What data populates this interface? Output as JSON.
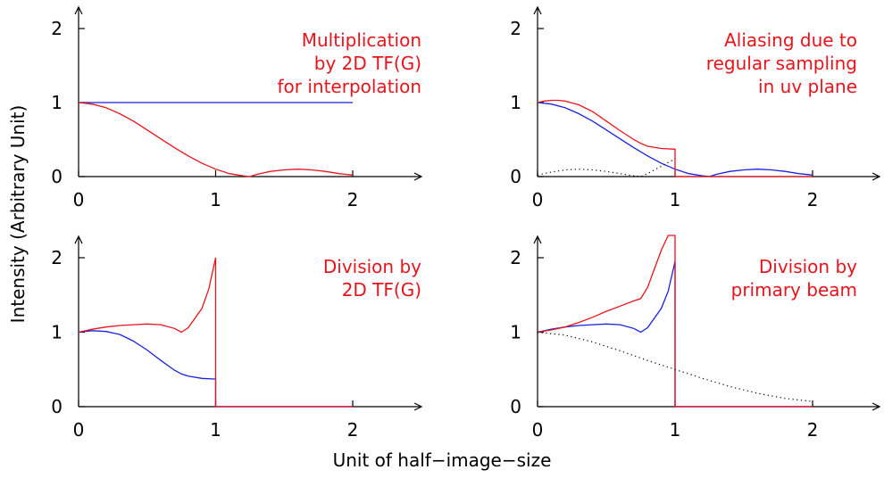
{
  "figure": {
    "ylabel": "Intensity (Arbitrary Unit)",
    "xlabel": "Unit of half−image−size"
  },
  "colors": {
    "red": "#e8141c",
    "blue": "#1a22e0",
    "black": "#000000"
  },
  "chart_data": [
    {
      "type": "line",
      "title": "",
      "annotation": [
        "Multiplication",
        "by 2D TF(G)",
        "for interpolation"
      ],
      "xlim": [
        0,
        2.5
      ],
      "ylim": [
        0,
        2.3
      ],
      "xticks": [
        0,
        1,
        2
      ],
      "yticks": [
        0,
        1,
        2
      ],
      "series": [
        {
          "color": "blue",
          "style": "solid",
          "x": [
            0,
            2
          ],
          "y": [
            1,
            1
          ]
        },
        {
          "color": "red",
          "style": "solid",
          "x": [
            0,
            0.1,
            0.2,
            0.3,
            0.4,
            0.5,
            0.6,
            0.7,
            0.8,
            0.9,
            1.0,
            1.1,
            1.2,
            1.25,
            1.3,
            1.4,
            1.5,
            1.6,
            1.7,
            1.8,
            1.9,
            2.0
          ],
          "y": [
            1.0,
            0.98,
            0.93,
            0.85,
            0.75,
            0.63,
            0.51,
            0.39,
            0.28,
            0.18,
            0.1,
            0.04,
            0.01,
            0.0,
            0.03,
            0.07,
            0.09,
            0.1,
            0.09,
            0.07,
            0.04,
            0.02
          ]
        }
      ]
    },
    {
      "type": "line",
      "title": "",
      "annotation": [
        "Aliasing due to",
        "regular sampling",
        "in uv plane"
      ],
      "xlim": [
        0,
        2.5
      ],
      "ylim": [
        0,
        2.3
      ],
      "xticks": [
        0,
        1,
        2
      ],
      "yticks": [
        0,
        1,
        2
      ],
      "series": [
        {
          "color": "blue",
          "style": "solid",
          "x": [
            0,
            0.1,
            0.2,
            0.3,
            0.4,
            0.5,
            0.6,
            0.7,
            0.8,
            0.9,
            1.0,
            1.1,
            1.2,
            1.25,
            1.3,
            1.4,
            1.5,
            1.6,
            1.7,
            1.8,
            1.9,
            2.0
          ],
          "y": [
            1.0,
            0.98,
            0.93,
            0.85,
            0.75,
            0.63,
            0.51,
            0.39,
            0.28,
            0.18,
            0.1,
            0.04,
            0.01,
            0.0,
            0.03,
            0.07,
            0.09,
            0.1,
            0.09,
            0.07,
            0.04,
            0.02
          ]
        },
        {
          "color": "red",
          "style": "solid",
          "x": [
            0,
            0.05,
            0.1,
            0.15,
            0.2,
            0.3,
            0.4,
            0.5,
            0.6,
            0.7,
            0.75,
            0.8,
            0.9,
            1.0,
            1.0,
            1.5,
            2.0
          ],
          "y": [
            1.0,
            1.02,
            1.03,
            1.03,
            1.02,
            0.97,
            0.88,
            0.75,
            0.62,
            0.5,
            0.45,
            0.41,
            0.38,
            0.37,
            0.0,
            0.0,
            0.0
          ]
        },
        {
          "color": "black",
          "style": "dotted",
          "x": [
            0,
            0.1,
            0.2,
            0.3,
            0.4,
            0.5,
            0.6,
            0.7,
            0.75,
            0.8,
            0.9,
            1.0
          ],
          "y": [
            0.02,
            0.06,
            0.09,
            0.1,
            0.09,
            0.07,
            0.04,
            0.01,
            0.0,
            0.04,
            0.14,
            0.24
          ]
        }
      ]
    },
    {
      "type": "line",
      "title": "",
      "annotation": [
        "Division by",
        "2D TF(G)"
      ],
      "xlim": [
        0,
        2.5
      ],
      "ylim": [
        0,
        2.3
      ],
      "xticks": [
        0,
        1,
        2
      ],
      "yticks": [
        0,
        1,
        2
      ],
      "series": [
        {
          "color": "blue",
          "style": "solid",
          "x": [
            0,
            0.1,
            0.2,
            0.3,
            0.4,
            0.5,
            0.6,
            0.7,
            0.75,
            0.8,
            0.9,
            1.0,
            1.0,
            1.5,
            2.0
          ],
          "y": [
            1.0,
            1.02,
            1.01,
            0.97,
            0.88,
            0.76,
            0.62,
            0.49,
            0.44,
            0.41,
            0.38,
            0.37,
            0.0,
            0.0,
            0.0
          ]
        },
        {
          "color": "red",
          "style": "solid",
          "x": [
            0,
            0.1,
            0.2,
            0.3,
            0.4,
            0.5,
            0.6,
            0.7,
            0.75,
            0.8,
            0.9,
            0.95,
            1.0,
            1.0,
            1.5,
            2.0
          ],
          "y": [
            1.0,
            1.04,
            1.07,
            1.09,
            1.1,
            1.11,
            1.1,
            1.05,
            1.0,
            1.06,
            1.32,
            1.58,
            2.0,
            0.0,
            0.0,
            0.0
          ]
        }
      ]
    },
    {
      "type": "line",
      "title": "",
      "annotation": [
        "Division by",
        "primary beam"
      ],
      "xlim": [
        0,
        2.5
      ],
      "ylim": [
        0,
        2.3
      ],
      "xticks": [
        0,
        1,
        2
      ],
      "yticks": [
        0,
        1,
        2
      ],
      "series": [
        {
          "color": "blue",
          "style": "solid",
          "x": [
            0,
            0.1,
            0.2,
            0.3,
            0.4,
            0.5,
            0.6,
            0.7,
            0.75,
            0.8,
            0.9,
            0.95,
            1.0,
            1.0,
            1.5,
            2.0
          ],
          "y": [
            1.0,
            1.04,
            1.07,
            1.09,
            1.1,
            1.11,
            1.1,
            1.05,
            1.0,
            1.06,
            1.32,
            1.55,
            1.95,
            0.0,
            0.0,
            0.0
          ]
        },
        {
          "color": "red",
          "style": "solid",
          "x": [
            0,
            0.1,
            0.2,
            0.3,
            0.4,
            0.5,
            0.6,
            0.7,
            0.75,
            0.8,
            0.85,
            0.9,
            0.95,
            1.0,
            1.0,
            1.5,
            2.0
          ],
          "y": [
            1.0,
            1.03,
            1.07,
            1.13,
            1.2,
            1.28,
            1.35,
            1.42,
            1.45,
            1.6,
            1.85,
            2.1,
            2.3,
            2.3,
            0.0,
            0.0,
            0.0
          ]
        },
        {
          "color": "black",
          "style": "dotted",
          "x": [
            0,
            0.2,
            0.4,
            0.6,
            0.8,
            1.0,
            1.2,
            1.4,
            1.6,
            1.8,
            2.0
          ],
          "y": [
            1.0,
            0.96,
            0.87,
            0.75,
            0.62,
            0.5,
            0.38,
            0.27,
            0.18,
            0.11,
            0.07
          ]
        }
      ]
    }
  ]
}
